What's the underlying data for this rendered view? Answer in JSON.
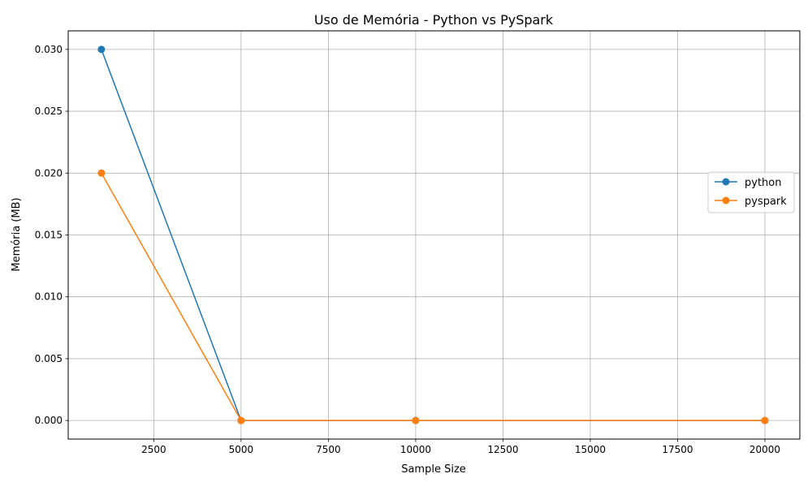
{
  "chart_data": {
    "type": "line",
    "title": "Uso de Memória - Python vs PySpark",
    "xlabel": "Sample Size",
    "ylabel": "Memória (MB)",
    "x": [
      1000,
      5000,
      10000,
      20000
    ],
    "series": [
      {
        "name": "python",
        "values": [
          0.03,
          0.0,
          0.0,
          0.0
        ],
        "color": "#1f77b4",
        "marker": "circle"
      },
      {
        "name": "pyspark",
        "values": [
          0.02,
          0.0,
          0.0,
          0.0
        ],
        "color": "#ff7f0e",
        "marker": "circle"
      }
    ],
    "xlim": [
      50,
      21000
    ],
    "ylim": [
      -0.0015,
      0.0315
    ],
    "xticks": [
      2500,
      5000,
      7500,
      10000,
      12500,
      15000,
      17500,
      20000
    ],
    "xtick_labels": [
      "2500",
      "5000",
      "7500",
      "10000",
      "12500",
      "15000",
      "17500",
      "20000"
    ],
    "yticks": [
      0.0,
      0.005,
      0.01,
      0.015,
      0.02,
      0.025,
      0.03
    ],
    "ytick_labels": [
      "0.000",
      "0.005",
      "0.010",
      "0.015",
      "0.020",
      "0.025",
      "0.030"
    ],
    "grid": true,
    "legend_position": "top-right"
  }
}
